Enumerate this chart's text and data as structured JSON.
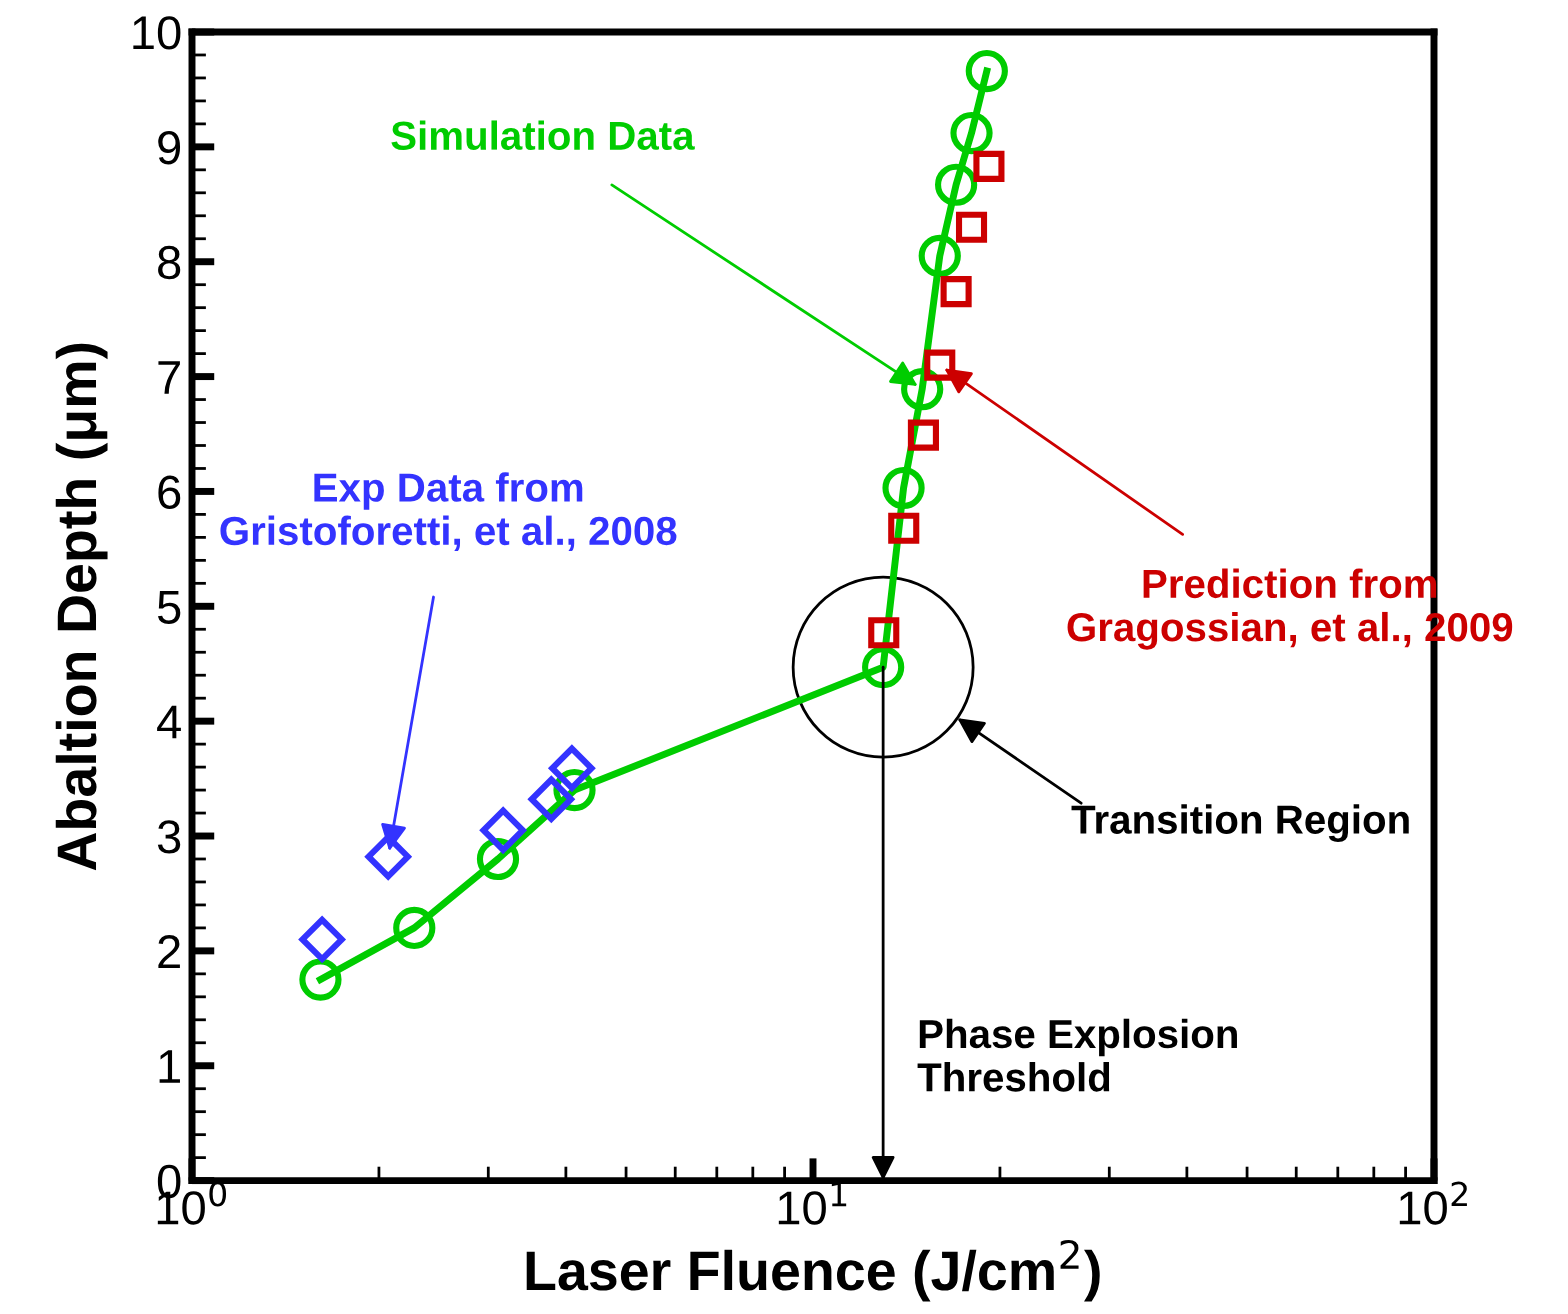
{
  "chart_data": {
    "type": "line",
    "xlabel": "Laser Fluence (J/cm$^{2}$)",
    "ylabel": "Abaltion Depth (μm)",
    "log": "x",
    "xlim": [
      1,
      100
    ],
    "ylim": [
      0,
      10
    ],
    "xticks": [
      {
        "value": 1,
        "label": "10$^{0}$"
      },
      {
        "value": 10,
        "label": "10$^{1}$"
      },
      {
        "value": 100,
        "label": "10$^{2}$"
      }
    ],
    "yticks": [
      0,
      1,
      2,
      3,
      4,
      5,
      6,
      7,
      8,
      9,
      10
    ],
    "grid": false,
    "line_style": "solid",
    "series": [
      {
        "marker": "circle",
        "color": "#00cc00",
        "x": [
          1.61,
          2.28,
          3.11,
          4.13,
          12.97,
          13.99,
          14.99,
          16.0,
          17.0,
          18.0,
          19.05
        ],
        "values": [
          1.75,
          2.2,
          2.8,
          3.4,
          4.47,
          6.03,
          6.89,
          8.05,
          8.67,
          9.12,
          9.66
        ]
      },
      {
        "type": "scatter",
        "marker": "diamond",
        "color": "#3333ff",
        "x": [
          1.62,
          2.07,
          3.17,
          3.79,
          4.09
        ],
        "values": [
          2.1,
          2.82,
          3.05,
          3.32,
          3.59
        ]
      },
      {
        "type": "scatter",
        "marker": "square",
        "color": "#cc0000",
        "x": [
          13.0,
          14.0,
          15.06,
          16.0,
          17.0,
          18.0,
          19.2
        ],
        "values": [
          4.77,
          5.68,
          6.49,
          7.1,
          7.74,
          8.3,
          8.83
        ]
      }
    ],
    "annotations": [
      {
        "text": "Simulation Data",
        "x": 15.0,
        "y": 6.89
      },
      {
        "text": "Exp Data from\nGristoforetti, et al., 2008",
        "x": 2.07,
        "y": 2.82
      },
      {
        "text": "Prediction from\nGragossian, et al., 2009",
        "x": 16.0,
        "y": 7.1
      },
      "Transition Region",
      "Phase Explosion\nThreshold"
    ]
  }
}
